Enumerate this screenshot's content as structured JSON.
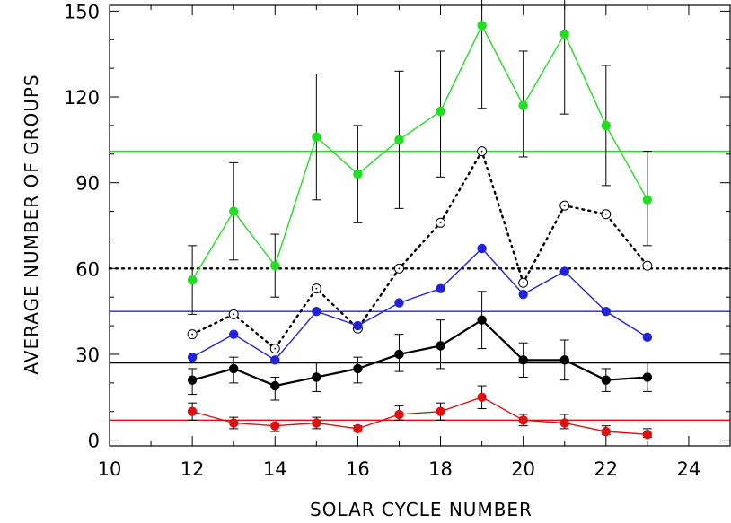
{
  "chart_data": {
    "type": "line",
    "xlabel": "SOLAR CYCLE NUMBER",
    "ylabel": "AVERAGE NUMBER OF GROUPS",
    "xlim": [
      10,
      25
    ],
    "ylim": [
      -2,
      152
    ],
    "xticks": [
      10,
      12,
      14,
      16,
      18,
      20,
      22,
      24
    ],
    "yticks": [
      0,
      30,
      60,
      90,
      120,
      150
    ],
    "grid": false,
    "x": [
      12,
      13,
      14,
      15,
      16,
      17,
      18,
      19,
      20,
      21,
      22,
      23
    ],
    "series": [
      {
        "color": "#22dd22",
        "line_style": "solid",
        "marker": "filled-circle",
        "values": [
          56,
          80,
          61,
          106,
          93,
          105,
          115,
          145,
          117,
          142,
          110,
          84
        ],
        "err_low": [
          44,
          63,
          50,
          84,
          76,
          81,
          92,
          116,
          99,
          114,
          89,
          68
        ],
        "err_high": [
          68,
          97,
          72,
          128,
          110,
          129,
          136,
          174,
          136,
          170,
          131,
          101
        ],
        "mean": 101
      },
      {
        "color": "#000000",
        "line_style": "dotted",
        "marker": "open-circle",
        "values": [
          37,
          44,
          32,
          53,
          39,
          60,
          76,
          101,
          55,
          82,
          79,
          61
        ],
        "mean": 60
      },
      {
        "color": "#2222dd",
        "line_style": "solid",
        "marker": "filled-circle",
        "values": [
          29,
          37,
          28,
          45,
          40,
          48,
          53,
          67,
          51,
          59,
          45,
          36
        ],
        "mean": 45
      },
      {
        "color": "#000000",
        "line_style": "solid",
        "marker": "filled-circle",
        "values": [
          21,
          25,
          19,
          22,
          25,
          30,
          33,
          42,
          28,
          28,
          21,
          22
        ],
        "err_low": [
          16,
          20,
          14,
          17,
          20,
          24,
          25,
          32,
          22,
          21,
          17,
          17
        ],
        "err_high": [
          25,
          29,
          22,
          27,
          29,
          37,
          42,
          52,
          34,
          35,
          25,
          27
        ],
        "mean": 27
      },
      {
        "color": "#dd1111",
        "line_style": "solid",
        "marker": "filled-circle",
        "values": [
          10,
          6,
          5,
          6,
          4,
          9,
          10,
          15,
          7,
          6,
          3,
          2
        ],
        "err_low": [
          7,
          4,
          3,
          4,
          3,
          7,
          7,
          11,
          5,
          4,
          2,
          1
        ],
        "err_high": [
          13,
          8,
          6,
          8,
          5,
          12,
          13,
          19,
          9,
          9,
          5,
          4
        ],
        "mean": 7
      }
    ]
  }
}
